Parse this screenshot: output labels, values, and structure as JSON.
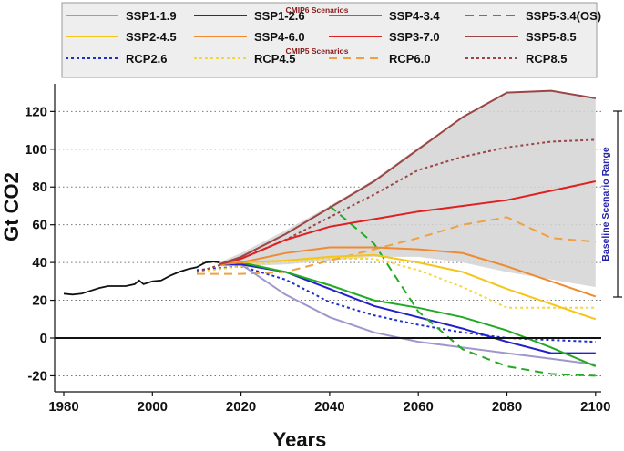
{
  "chart_data": {
    "type": "line",
    "xlabel": "Years",
    "ylabel": "Gt CO2",
    "xlim": [
      1978,
      2102
    ],
    "ylim": [
      -24,
      134
    ],
    "x_ticks": [
      1980,
      2000,
      2020,
      2040,
      2060,
      2080,
      2100
    ],
    "y_ticks": [
      -20,
      0,
      20,
      40,
      60,
      80,
      100,
      120
    ],
    "x_tick_labels": [
      "1980",
      "2000",
      "2020",
      "2040",
      "2060",
      "2080",
      "2100"
    ],
    "y_tick_labels": [
      "-20",
      "0",
      "20",
      "40",
      "60",
      "80",
      "100",
      "120"
    ],
    "grid": "horizontal dotted",
    "legend_position": "top",
    "legend_headers": {
      "cmip6": "CMIP6 Scenarios",
      "cmip5": "CMIP5 Scenarios"
    },
    "range_label": "Baseline Scenario Range",
    "baseline_range": {
      "x": [
        2015,
        2020,
        2030,
        2040,
        2050,
        2060,
        2070,
        2080,
        2090,
        2100
      ],
      "upper": [
        40,
        45,
        57,
        70,
        84,
        101,
        117,
        130,
        131,
        127
      ],
      "lower": [
        38,
        38,
        39,
        41,
        43,
        43,
        40,
        35,
        31,
        27
      ]
    },
    "historical": {
      "x": [
        1980,
        1982,
        1984,
        1986,
        1988,
        1990,
        1992,
        1994,
        1996,
        1997,
        1998,
        2000,
        2002,
        2004,
        2006,
        2008,
        2010,
        2012,
        2014,
        2015
      ],
      "values": [
        23.5,
        23,
        23.5,
        25,
        26.5,
        27.5,
        27.5,
        27.5,
        28.5,
        30.5,
        28.5,
        30,
        30.5,
        33,
        35,
        36.5,
        37.5,
        40,
        40.5,
        40
      ]
    },
    "series": [
      {
        "name": "SSP1-1.9",
        "group": "CMIP6",
        "color": "#9f97cc",
        "style": "solid",
        "x": [
          2015,
          2020,
          2030,
          2040,
          2050,
          2060,
          2070,
          2080,
          2090,
          2100
        ],
        "values": [
          39,
          39,
          23,
          11,
          3,
          -2,
          -5,
          -8,
          -11,
          -14
        ]
      },
      {
        "name": "SSP1-2.6",
        "group": "CMIP6",
        "color": "#2020cc",
        "style": "solid",
        "x": [
          2015,
          2020,
          2030,
          2040,
          2050,
          2060,
          2070,
          2080,
          2090,
          2100
        ],
        "values": [
          39,
          39,
          35,
          26,
          17,
          11,
          5,
          -2,
          -8,
          -8
        ]
      },
      {
        "name": "SSP4-3.4",
        "group": "CMIP6",
        "color": "#22aa22",
        "style": "solid",
        "x": [
          2015,
          2020,
          2030,
          2040,
          2050,
          2060,
          2070,
          2080,
          2090,
          2100
        ],
        "values": [
          39,
          40,
          35,
          28,
          20,
          16,
          11,
          4,
          -5,
          -15
        ]
      },
      {
        "name": "SSP5-3.4(OS)",
        "group": "CMIP6",
        "color": "#22aa22",
        "style": "dashed",
        "x": [
          2040,
          2050,
          2060,
          2070,
          2080,
          2090,
          2100
        ],
        "values": [
          70,
          50,
          14,
          -6,
          -15,
          -19,
          -20
        ]
      },
      {
        "name": "SSP2-4.5",
        "group": "CMIP6",
        "color": "#f5c518",
        "style": "solid",
        "x": [
          2015,
          2020,
          2030,
          2040,
          2050,
          2060,
          2070,
          2080,
          2090,
          2100
        ],
        "values": [
          39,
          40,
          41,
          43,
          44,
          40,
          35,
          26,
          18,
          10
        ]
      },
      {
        "name": "SSP4-6.0",
        "group": "CMIP6",
        "color": "#f08a30",
        "style": "solid",
        "x": [
          2015,
          2020,
          2030,
          2040,
          2050,
          2060,
          2070,
          2080,
          2090,
          2100
        ],
        "values": [
          39,
          40,
          45,
          48,
          48,
          47,
          45,
          38,
          30,
          22
        ]
      },
      {
        "name": "SSP3-7.0",
        "group": "CMIP6",
        "color": "#e02020",
        "style": "solid",
        "x": [
          2015,
          2020,
          2030,
          2040,
          2050,
          2060,
          2070,
          2080,
          2090,
          2100
        ],
        "values": [
          39,
          42,
          52,
          59,
          63,
          67,
          70,
          73,
          78,
          83
        ]
      },
      {
        "name": "SSP5-8.5",
        "group": "CMIP6",
        "color": "#9b4545",
        "style": "solid",
        "x": [
          2015,
          2020,
          2030,
          2040,
          2050,
          2060,
          2070,
          2080,
          2090,
          2100
        ],
        "values": [
          39,
          43,
          55,
          69,
          83,
          100,
          117,
          130,
          131,
          127
        ]
      },
      {
        "name": "RCP2.6",
        "group": "CMIP5",
        "color": "#1f2fcc",
        "style": "dotted",
        "x": [
          2010,
          2020,
          2030,
          2040,
          2050,
          2060,
          2070,
          2080,
          2090,
          2100
        ],
        "values": [
          36,
          38,
          31,
          19,
          12,
          7,
          3,
          0,
          -1,
          -2
        ]
      },
      {
        "name": "RCP4.5",
        "group": "CMIP5",
        "color": "#f5d640",
        "style": "dotted",
        "x": [
          2010,
          2020,
          2030,
          2040,
          2050,
          2060,
          2070,
          2080,
          2090,
          2100
        ],
        "values": [
          35,
          38,
          41,
          42,
          42,
          36,
          27,
          16,
          16,
          16
        ]
      },
      {
        "name": "RCP6.0",
        "group": "CMIP5",
        "color": "#f0a040",
        "style": "dashed",
        "x": [
          2010,
          2020,
          2030,
          2040,
          2050,
          2060,
          2070,
          2080,
          2090,
          2100
        ],
        "values": [
          34,
          34,
          35,
          41,
          47,
          53,
          60,
          64,
          53,
          51
        ]
      },
      {
        "name": "RCP8.5",
        "group": "CMIP5",
        "color": "#9b4545",
        "style": "dotted",
        "x": [
          2010,
          2020,
          2030,
          2040,
          2050,
          2060,
          2070,
          2080,
          2090,
          2100
        ],
        "values": [
          35,
          42,
          52,
          64,
          76,
          89,
          96,
          101,
          104,
          105
        ]
      }
    ]
  }
}
